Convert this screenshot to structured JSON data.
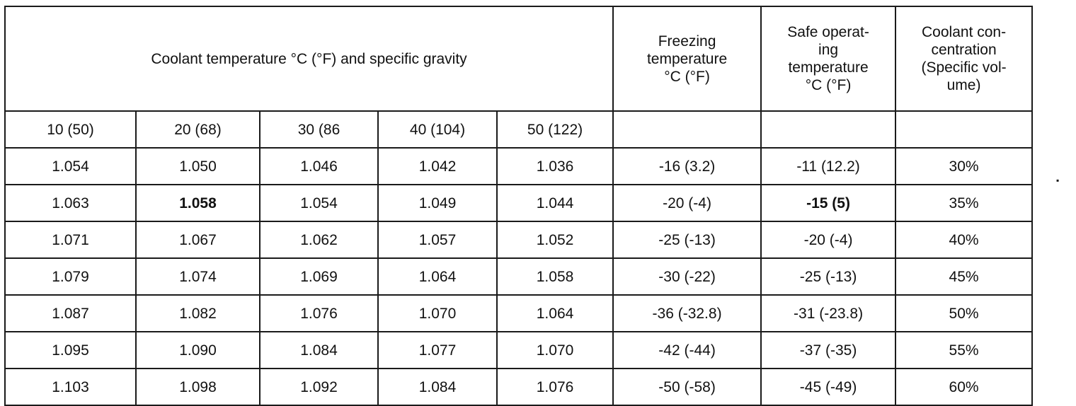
{
  "table": {
    "main_header": "Coolant temperature °C (°F) and specific gravity",
    "freezing_header": "Freezing\ntemperature\n°C (°F)",
    "safe_header": "Safe operat-\ning\ntemperature\n°C (°F)",
    "concentration_header": "Coolant con-\ncentration\n(Specific vol-\nume)",
    "temp_columns": [
      "10 (50)",
      "20 (68)",
      "30 (86",
      "40 (104)",
      "50 (122)"
    ],
    "rows": [
      {
        "sg": [
          "1.054",
          "1.050",
          "1.046",
          "1.042",
          "1.036"
        ],
        "freezing": "-16 (3.2)",
        "safe": "-11 (12.2)",
        "concentration": "30%"
      },
      {
        "sg": [
          "1.063",
          "1.058",
          "1.054",
          "1.049",
          "1.044"
        ],
        "freezing": "-20 (-4)",
        "safe": "-15 (5)",
        "concentration": "35%"
      },
      {
        "sg": [
          "1.071",
          "1.067",
          "1.062",
          "1.057",
          "1.052"
        ],
        "freezing": "-25 (-13)",
        "safe": "-20 (-4)",
        "concentration": "40%"
      },
      {
        "sg": [
          "1.079",
          "1.074",
          "1.069",
          "1.064",
          "1.058"
        ],
        "freezing": "-30 (-22)",
        "safe": "-25 (-13)",
        "concentration": "45%"
      },
      {
        "sg": [
          "1.087",
          "1.082",
          "1.076",
          "1.070",
          "1.064"
        ],
        "freezing": "-36 (-32.8)",
        "safe": "-31 (-23.8)",
        "concentration": "50%"
      },
      {
        "sg": [
          "1.095",
          "1.090",
          "1.084",
          "1.077",
          "1.070"
        ],
        "freezing": "-42 (-44)",
        "safe": "-37 (-35)",
        "concentration": "55%"
      },
      {
        "sg": [
          "1.103",
          "1.098",
          "1.092",
          "1.084",
          "1.076"
        ],
        "freezing": "-50 (-58)",
        "safe": "-45 (-49)",
        "concentration": "60%"
      }
    ]
  }
}
